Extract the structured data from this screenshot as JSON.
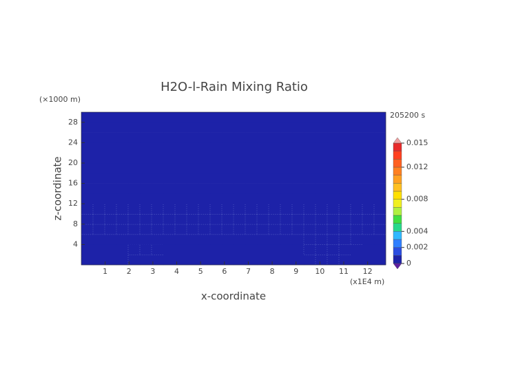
{
  "chart_data": {
    "type": "heatmap",
    "title": "H2O-l-Rain Mixing Ratio",
    "xlabel": "x-coordinate",
    "ylabel": "z-coordinate",
    "xunit": "(x1E4 m)",
    "yunit": "(×1000 m)",
    "time_label": "205200 s",
    "xlim": [
      0,
      12.76
    ],
    "ylim": [
      0,
      30
    ],
    "xticks": [
      1,
      2,
      3,
      4,
      5,
      6,
      7,
      8,
      9,
      10,
      11,
      12
    ],
    "yticks": [
      4,
      8,
      12,
      16,
      20,
      24,
      28
    ],
    "values": [
      [
        0.0002,
        0,
        0,
        0,
        0.0002,
        0,
        0,
        0,
        0,
        0,
        0,
        0,
        0,
        0,
        0,
        0,
        0,
        0,
        0,
        0,
        0.0002,
        0.0002,
        0.0002,
        0,
        0,
        0
      ],
      [
        0,
        0,
        0,
        0,
        0.0002,
        0.0002,
        0.0002,
        0,
        0,
        0,
        0,
        0,
        0,
        0,
        0,
        0,
        0,
        0,
        0,
        0.0002,
        0.0002,
        0.0002,
        0.0002,
        0,
        0,
        0
      ],
      [
        0,
        0,
        0,
        0,
        0,
        0,
        0,
        0,
        0,
        0,
        0,
        0,
        0,
        0,
        0,
        0,
        0,
        0,
        0,
        0.0002,
        0.0002,
        0.0002,
        0.0002,
        0.0002,
        0,
        0
      ],
      [
        0.0002,
        0.0002,
        0.0002,
        0.0002,
        0.0002,
        0.0002,
        0.0002,
        0.0002,
        0.0002,
        0.0002,
        0.0002,
        0.0002,
        0.0002,
        0.0002,
        0.0002,
        0.0002,
        0.0002,
        0.0002,
        0.0002,
        0.0002,
        0.0002,
        0.0002,
        0.0002,
        0.0002,
        0.0002,
        0.0002
      ],
      [
        0.0002,
        0.0002,
        0.0002,
        0.0002,
        0.0002,
        0.0002,
        0.0002,
        0.0002,
        0.0002,
        0.0002,
        0.0002,
        0.0002,
        0.0002,
        0.0002,
        0.0002,
        0.0002,
        0.0002,
        0.0002,
        0.0002,
        0.0002,
        0.0002,
        0.0002,
        0.0002,
        0.0002,
        0.0002,
        0.0002
      ],
      [
        0.0002,
        0.0002,
        0.0002,
        0.0002,
        0.0002,
        0.0002,
        0.0002,
        0.0002,
        0.0002,
        0.0002,
        0.0002,
        0.0002,
        0.0002,
        0.0002,
        0.0002,
        0.0002,
        0.0002,
        0.0002,
        0.0002,
        0.0002,
        0.0002,
        0.0002,
        0.0002,
        0.0002,
        0.0002,
        0.0002
      ],
      [
        0,
        0,
        0,
        0,
        0,
        0,
        0,
        0,
        0,
        0,
        0,
        0,
        0,
        0,
        0,
        0,
        0,
        0,
        0,
        0,
        0,
        0,
        0,
        0,
        0,
        0
      ],
      [
        0,
        0,
        0,
        0,
        0,
        0,
        0,
        0,
        0,
        0,
        0,
        0,
        0,
        0,
        0,
        0,
        0,
        0,
        0,
        0,
        0,
        0,
        0,
        0,
        0,
        0
      ],
      [
        0,
        0,
        0,
        0,
        0,
        0,
        0,
        0,
        0,
        0,
        0,
        0,
        0,
        0,
        0,
        0,
        0,
        0,
        0,
        0,
        0,
        0,
        0,
        0,
        0,
        0
      ],
      [
        0,
        0,
        0,
        0,
        0,
        0,
        0,
        0,
        0,
        0,
        0,
        0,
        0,
        0,
        0,
        0,
        0,
        0,
        0,
        0,
        0,
        0,
        0,
        0,
        0,
        0
      ],
      [
        0,
        0,
        0,
        0,
        0,
        0,
        0,
        0,
        0,
        0,
        0,
        0,
        0,
        0,
        0,
        0,
        0,
        0,
        0,
        0,
        0,
        0,
        0,
        0,
        0,
        0
      ],
      [
        0,
        0,
        0,
        0,
        0,
        0,
        0,
        0,
        0,
        0,
        0,
        0,
        0,
        0,
        0,
        0,
        0,
        0,
        0,
        0,
        0,
        0,
        0,
        0,
        0,
        0
      ],
      [
        0,
        0,
        0,
        0,
        0,
        0,
        0,
        0,
        0,
        0,
        0,
        0,
        0,
        0,
        0,
        0,
        0,
        0,
        0,
        0,
        0,
        0,
        0,
        0,
        0,
        0
      ],
      [
        0,
        0,
        0,
        0,
        0,
        0,
        0,
        0,
        0,
        0,
        0,
        0,
        0,
        0,
        0,
        0,
        0,
        0,
        0,
        0,
        0,
        0,
        0,
        0,
        0,
        0
      ],
      [
        0,
        0,
        0,
        0,
        0,
        0,
        0,
        0,
        0,
        0,
        0,
        0,
        0,
        0,
        0,
        0,
        0,
        0,
        0,
        0,
        0,
        0,
        0,
        0,
        0,
        0
      ]
    ],
    "levels": [
      0,
      0.001,
      0.002,
      0.003,
      0.004,
      0.005,
      0.006,
      0.007,
      0.008,
      0.009,
      0.01,
      0.011,
      0.012,
      0.013,
      0.014,
      0.015
    ],
    "colors": [
      "#1d22a8",
      "#2b4de0",
      "#2f7fff",
      "#2fb8ff",
      "#27d88a",
      "#40e040",
      "#b0f040",
      "#f0f020",
      "#ffe000",
      "#ffc020",
      "#ffa020",
      "#ff8020",
      "#ff6020",
      "#ff4020",
      "#e82a2a"
    ],
    "cticks": [
      0,
      0.002,
      0.004,
      0.008,
      0.012,
      0.015
    ]
  }
}
